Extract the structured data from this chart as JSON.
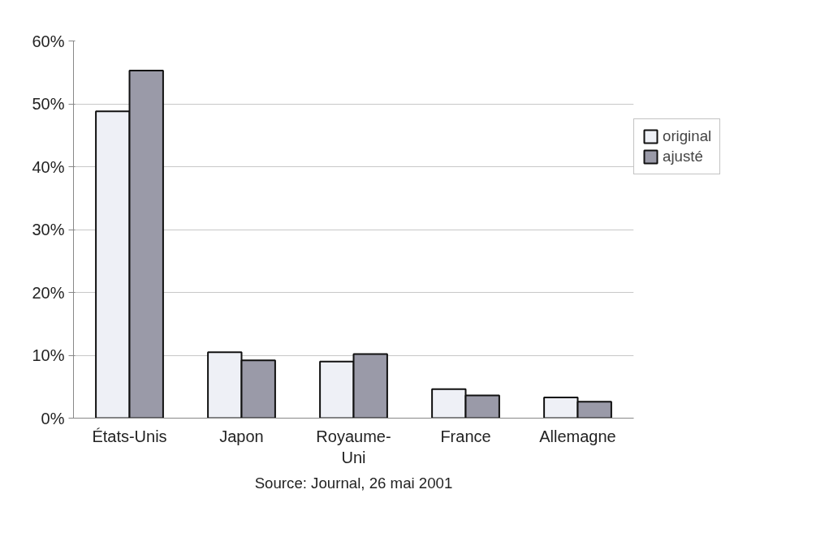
{
  "chart_data": {
    "type": "bar",
    "categories": [
      "États-Unis",
      "Japon",
      "Royaume-\nUni",
      "France",
      "Allemagne"
    ],
    "series": [
      {
        "name": "original",
        "color": "#eef0f6",
        "values": [
          48.8,
          10.5,
          9.0,
          4.6,
          3.3
        ]
      },
      {
        "name": "ajusté",
        "color": "#9a9aa8",
        "values": [
          55.3,
          9.2,
          10.2,
          3.6,
          2.6
        ]
      }
    ],
    "ylim": [
      0,
      60
    ],
    "yticks": [
      {
        "value": 0,
        "label": "0%"
      },
      {
        "value": 10,
        "label": "10%"
      },
      {
        "value": 20,
        "label": "20%"
      },
      {
        "value": 30,
        "label": "30%"
      },
      {
        "value": 40,
        "label": "40%"
      },
      {
        "value": 50,
        "label": "50%"
      },
      {
        "value": 60,
        "label": "60%"
      }
    ],
    "grid": "y",
    "legend": "right",
    "annotations": [
      "Source: Journal, 26 mai 2001"
    ]
  }
}
